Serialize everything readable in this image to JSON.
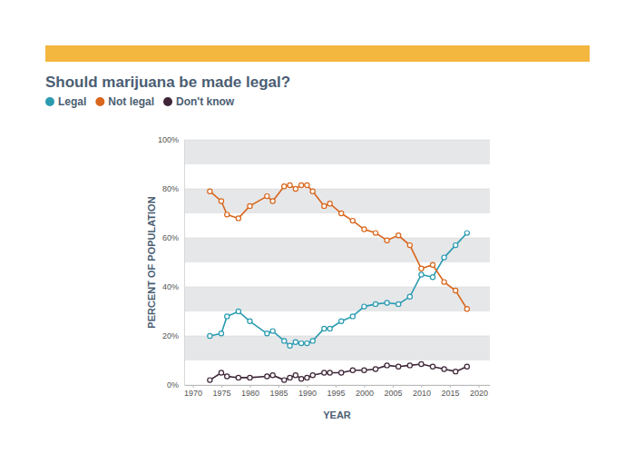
{
  "chart_data": {
    "type": "line",
    "title": "Should marijuana be made legal?",
    "x_label": "YEAR",
    "y_label": "PERCENT OF POPULATION",
    "x": [
      1973,
      1975,
      1976,
      1978,
      1980,
      1983,
      1984,
      1986,
      1987,
      1988,
      1989,
      1990,
      1991,
      1993,
      1994,
      1996,
      1998,
      2000,
      2002,
      2004,
      2006,
      2008,
      2010,
      2012,
      2014,
      2016,
      2018
    ],
    "series": [
      {
        "name": "Legal",
        "color": "#2a9bb1",
        "values": [
          20,
          21,
          28,
          30,
          26,
          21,
          22,
          18,
          16,
          17.5,
          17,
          17,
          18,
          23,
          23,
          26,
          28,
          32,
          33,
          33.5,
          33,
          36,
          45,
          44,
          52,
          57,
          62
        ]
      },
      {
        "name": "Not legal",
        "color": "#d8661c",
        "values": [
          79,
          75,
          69.5,
          68,
          73,
          77,
          75,
          81,
          81.5,
          80,
          81.5,
          81.5,
          79,
          73,
          74,
          70,
          67,
          63.5,
          62,
          59,
          61,
          57,
          47.5,
          49,
          42,
          38.5,
          31
        ]
      },
      {
        "name": "Don't know",
        "color": "#3e2638",
        "values": [
          2,
          5,
          3.5,
          3,
          3,
          3.5,
          4,
          2,
          3,
          4,
          2.5,
          3,
          4,
          5,
          5,
          5,
          6,
          6,
          6.5,
          8,
          7.5,
          8,
          8.5,
          7.5,
          6.5,
          5.5,
          7.5
        ]
      }
    ],
    "xlim": [
      1968.5,
      2022
    ],
    "xticks": [
      1970,
      1975,
      1980,
      1985,
      1990,
      1995,
      2000,
      2005,
      2010,
      2015,
      2020
    ],
    "ylim": [
      0,
      100
    ],
    "yticks": [
      {
        "value": 0,
        "label": "0%"
      },
      {
        "value": 20,
        "label": "20%"
      },
      {
        "value": 40,
        "label": "40%"
      },
      {
        "value": 60,
        "label": "60%"
      },
      {
        "value": 80,
        "label": "80%"
      },
      {
        "value": 100,
        "label": "100%"
      }
    ],
    "grid": true,
    "legend": "top-left",
    "marker": "circle"
  }
}
